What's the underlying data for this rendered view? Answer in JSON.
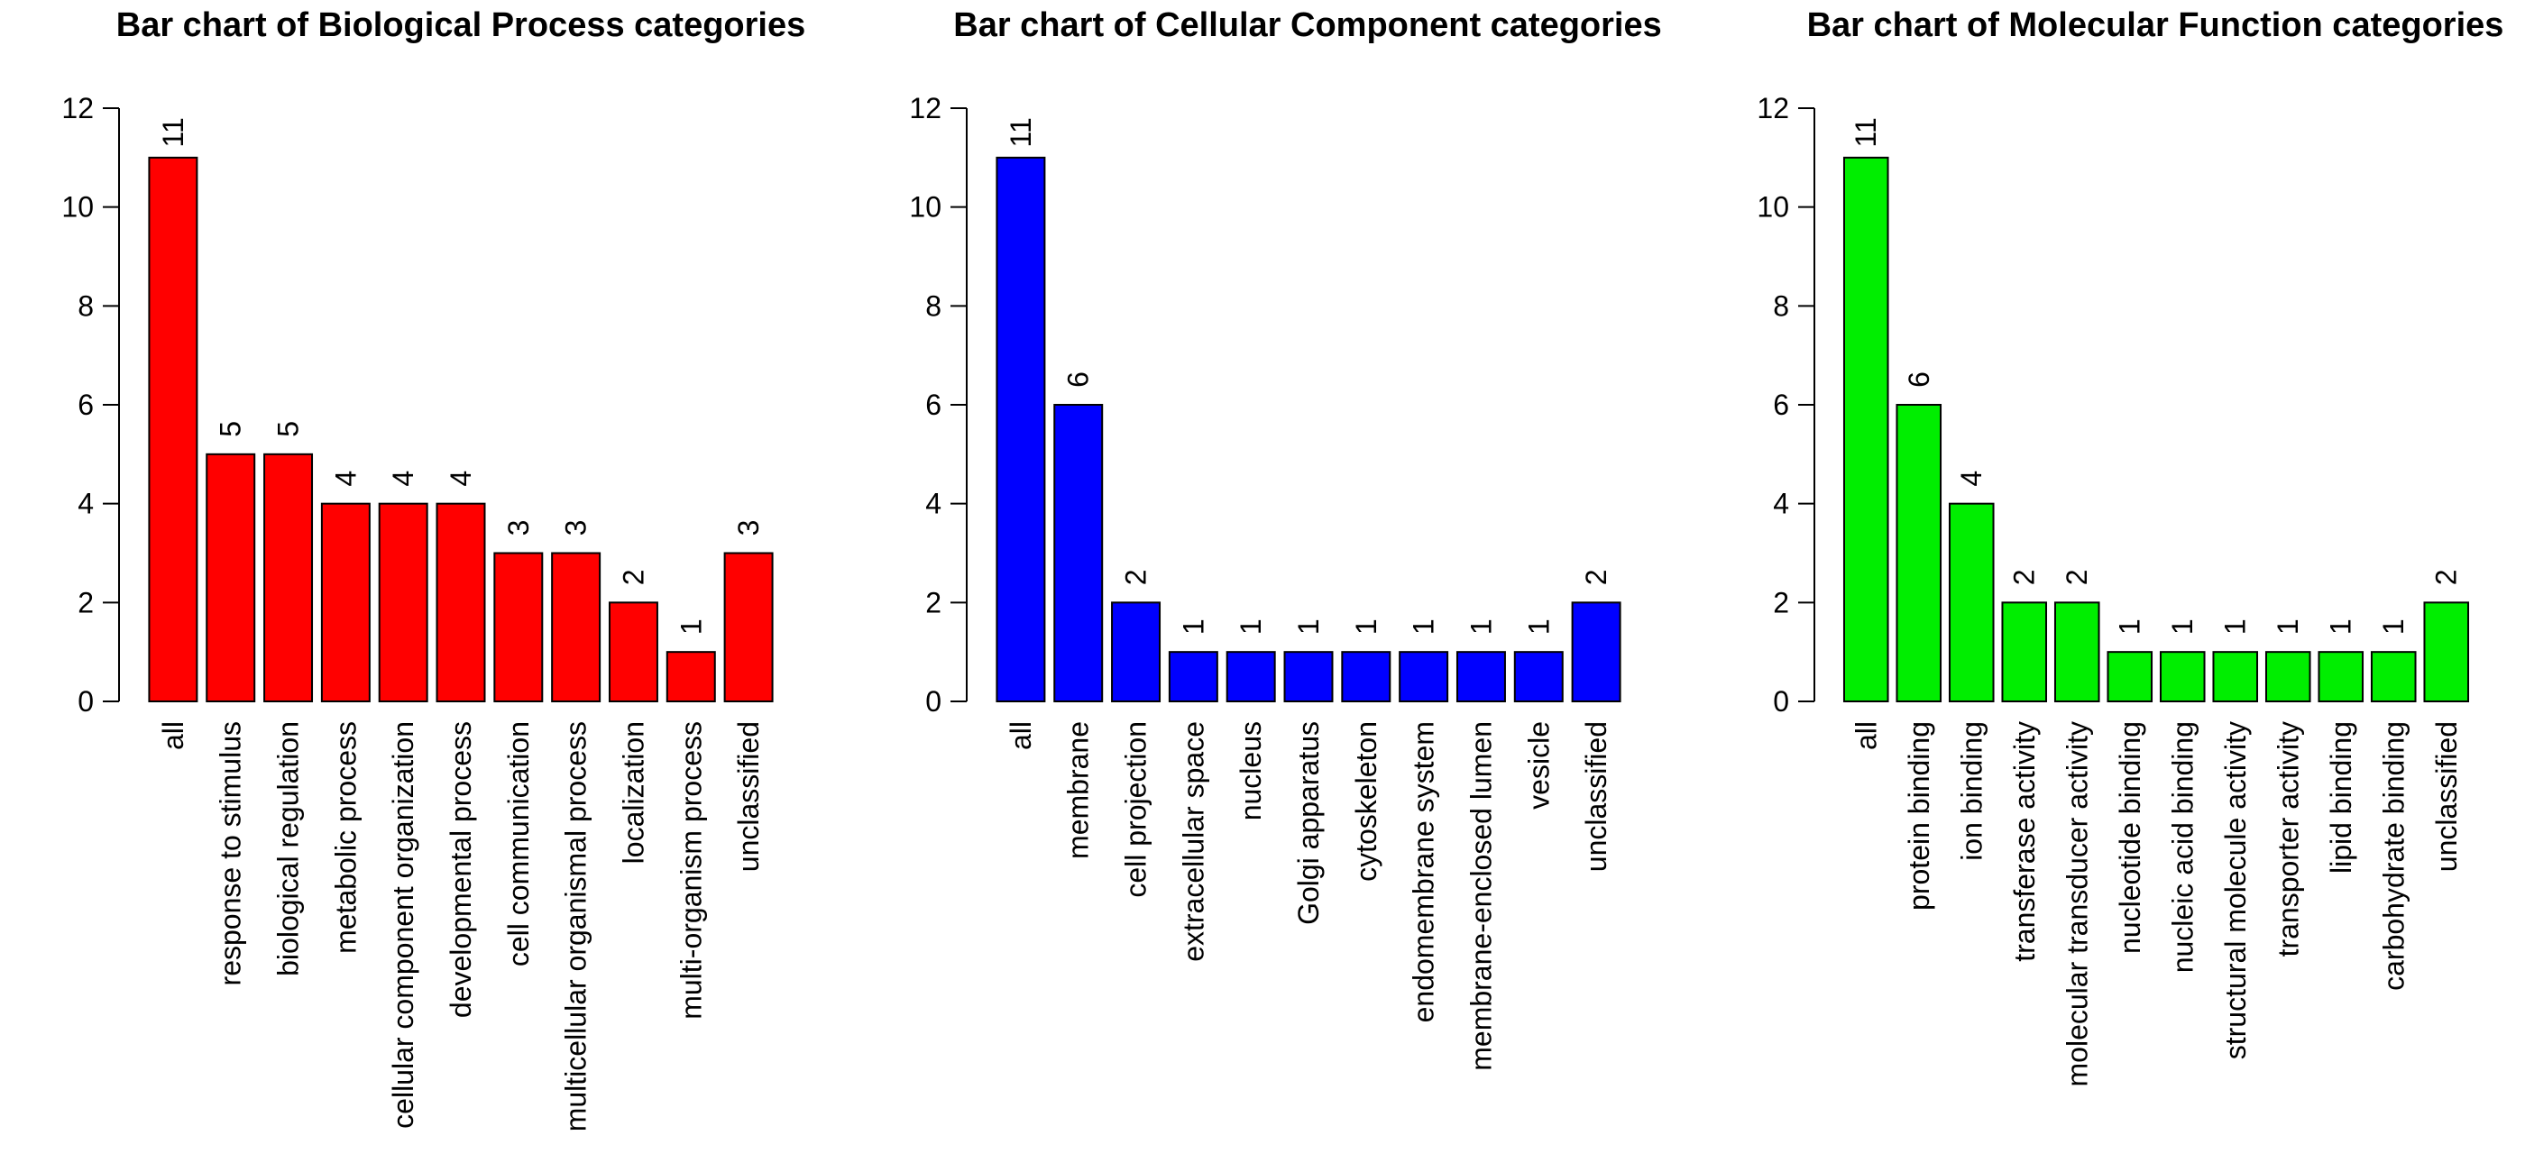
{
  "chart_data": [
    {
      "type": "bar",
      "title": "Bar chart of Biological Process categories",
      "xlabel": "",
      "ylabel": "",
      "ylim": [
        0,
        12
      ],
      "yticks": [
        0,
        2,
        4,
        6,
        8,
        10,
        12
      ],
      "color": "#ff0000",
      "grid": false,
      "categories": [
        "all",
        "response to stimulus",
        "biological regulation",
        "metabolic process",
        "cellular component organization",
        "developmental process",
        "cell communication",
        "multicellular organismal process",
        "localization",
        "multi-organism process",
        "unclassified"
      ],
      "values": [
        11,
        5,
        5,
        4,
        4,
        4,
        3,
        3,
        2,
        1,
        3
      ]
    },
    {
      "type": "bar",
      "title": "Bar chart of Cellular Component categories",
      "xlabel": "",
      "ylabel": "",
      "ylim": [
        0,
        12
      ],
      "yticks": [
        0,
        2,
        4,
        6,
        8,
        10,
        12
      ],
      "color": "#0000ff",
      "grid": false,
      "categories": [
        "all",
        "membrane",
        "cell projection",
        "extracellular space",
        "nucleus",
        "Golgi apparatus",
        "cytoskeleton",
        "endomembrane system",
        "membrane-enclosed lumen",
        "vesicle",
        "unclassified"
      ],
      "values": [
        11,
        6,
        2,
        1,
        1,
        1,
        1,
        1,
        1,
        1,
        2
      ]
    },
    {
      "type": "bar",
      "title": "Bar chart of Molecular Function categories",
      "xlabel": "",
      "ylabel": "",
      "ylim": [
        0,
        12
      ],
      "yticks": [
        0,
        2,
        4,
        6,
        8,
        10,
        12
      ],
      "color": "#00ee00",
      "grid": false,
      "categories": [
        "all",
        "protein binding",
        "ion binding",
        "transferase activity",
        "molecular transducer activity",
        "nucleotide binding",
        "nucleic acid binding",
        "structural molecule activity",
        "transporter activity",
        "lipid binding",
        "carbohydrate binding",
        "unclassified"
      ],
      "values": [
        11,
        6,
        4,
        2,
        2,
        1,
        1,
        1,
        1,
        1,
        1,
        2
      ]
    }
  ]
}
